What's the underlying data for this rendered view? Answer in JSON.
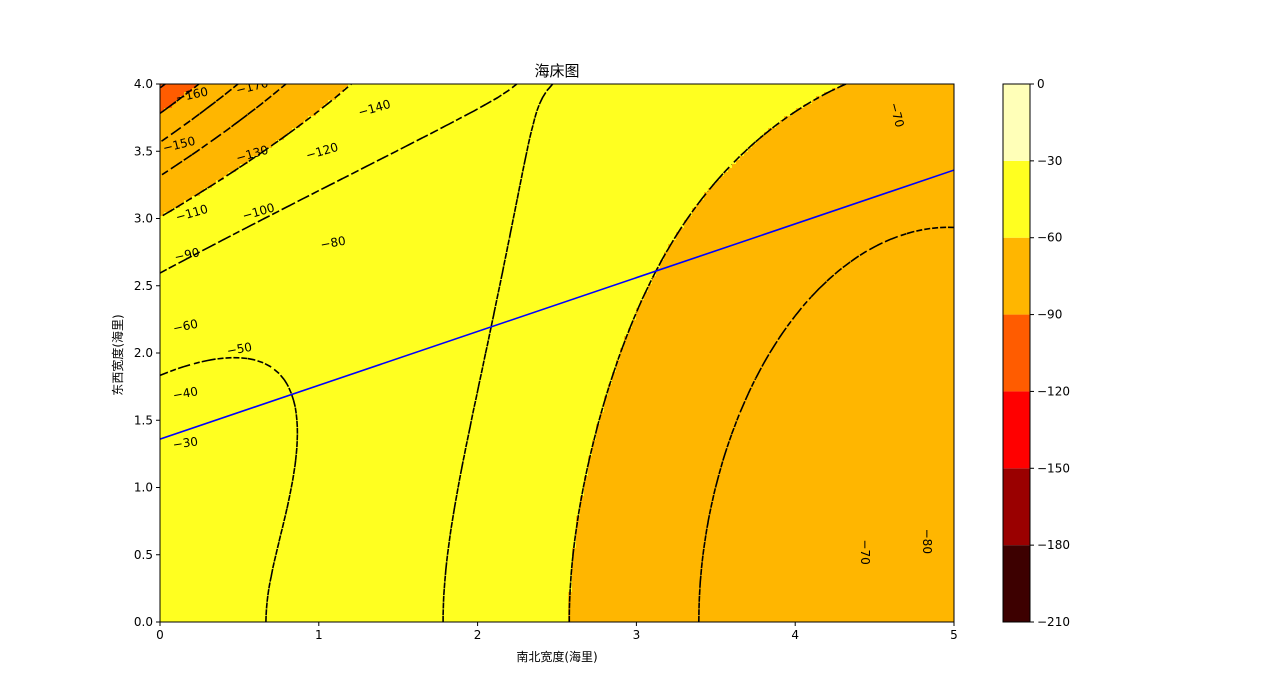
{
  "chart_data": {
    "type": "contour",
    "title": "海床图",
    "xlabel": "南北宽度(海里)",
    "ylabel": "东西宽度(海里)",
    "xlim": [
      0,
      5
    ],
    "ylim": [
      0,
      4
    ],
    "xticks": [
      "0",
      "1",
      "2",
      "3",
      "4",
      "5"
    ],
    "yticks": [
      "0.0",
      "0.5",
      "1.0",
      "1.5",
      "2.0",
      "2.5",
      "3.0",
      "3.5",
      "4.0"
    ],
    "filled_levels": [
      -210,
      -180,
      -150,
      -120,
      -90,
      -60,
      -30,
      0
    ],
    "filled_colors": [
      "#3d0000",
      "#9a0000",
      "#ff0000",
      "#ff5c00",
      "#ffb600",
      "#ffff20",
      "#ffffb8"
    ],
    "colorbar": {
      "ticks": [
        "0",
        "−30",
        "−60",
        "−90",
        "−120",
        "−150",
        "−180",
        "−210"
      ],
      "range": [
        -210,
        0
      ]
    },
    "line_levels": [
      -180,
      -170,
      -160,
      -150,
      -140,
      -130,
      -120,
      -110,
      -100,
      -90,
      -80,
      -70,
      -60,
      -50,
      -40,
      -30
    ],
    "line_style": "dashed",
    "contour_labels": [
      "−160",
      "−170",
      "−150",
      "−140",
      "−130",
      "−120",
      "−110",
      "−100",
      "−90",
      "−80",
      "−70",
      "−70",
      "−80",
      "−60",
      "−50",
      "−40",
      "−30"
    ],
    "survey_line": {
      "color": "#0000ff",
      "points": [
        [
          0,
          1.36
        ],
        [
          5,
          3.36
        ]
      ]
    },
    "grid": false
  }
}
